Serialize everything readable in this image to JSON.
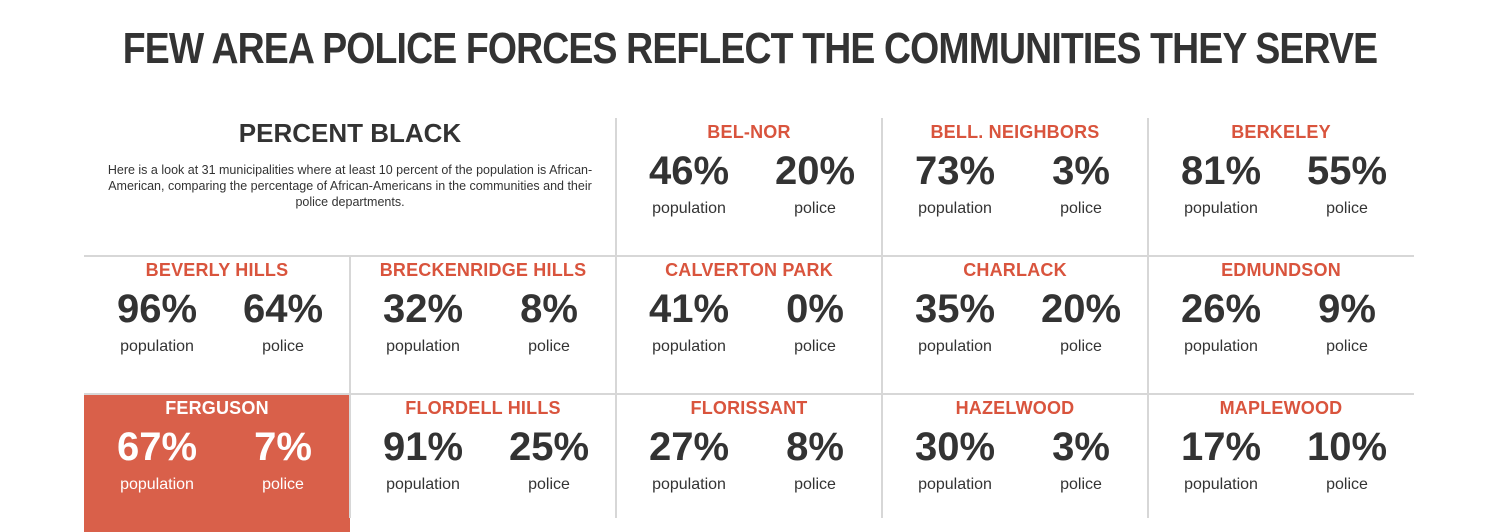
{
  "title": "FEW AREA POLICE FORCES REFLECT THE COMMUNITIES THEY SERVE",
  "intro": {
    "heading": "PERCENT BLACK",
    "description": "Here is a look at 31 municipalities where at least 10 percent of the population is African-American, comparing the percentage of African-Americans in the communities and their police departments."
  },
  "labels": {
    "population": "population",
    "police": "police"
  },
  "colors": {
    "accent": "#d9543d",
    "highlight_bg": "#d9604a",
    "text": "#333333",
    "grid": "#d7d7d7"
  },
  "chart_data": {
    "type": "table",
    "columns": [
      "population",
      "police"
    ],
    "unit": "%",
    "rows": [
      {
        "name": "BEL-NOR",
        "population": "46%",
        "police": "20%"
      },
      {
        "name": "BELL. NEIGHBORS",
        "population": "73%",
        "police": "3%"
      },
      {
        "name": "BERKELEY",
        "population": "81%",
        "police": "55%"
      },
      {
        "name": "BEVERLY HILLS",
        "population": "96%",
        "police": "64%"
      },
      {
        "name": "BRECKENRIDGE HILLS",
        "population": "32%",
        "police": "8%"
      },
      {
        "name": "CALVERTON PARK",
        "population": "41%",
        "police": "0%"
      },
      {
        "name": "CHARLACK",
        "population": "35%",
        "police": "20%"
      },
      {
        "name": "EDMUNDSON",
        "population": "26%",
        "police": "9%"
      },
      {
        "name": "FERGUSON",
        "population": "67%",
        "police": "7%",
        "highlight": true
      },
      {
        "name": "FLORDELL HILLS",
        "population": "91%",
        "police": "25%"
      },
      {
        "name": "FLORISSANT",
        "population": "27%",
        "police": "8%"
      },
      {
        "name": "HAZELWOOD",
        "population": "30%",
        "police": "3%"
      },
      {
        "name": "MAPLEWOOD",
        "population": "17%",
        "police": "10%"
      }
    ]
  }
}
